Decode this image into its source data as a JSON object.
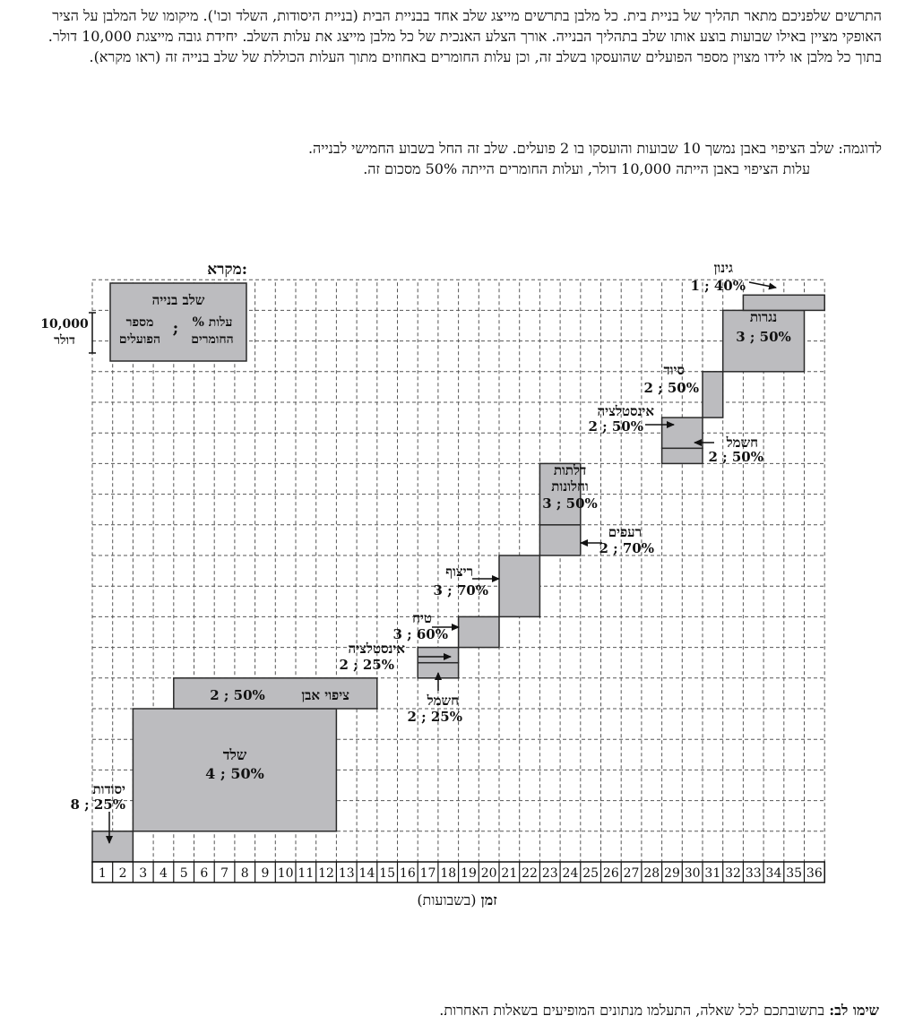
{
  "intro": {
    "p1": "התרשים שלפניכם מתאר תהליך של בניית בית.  כל מלבן בתרשים מייצג שלב אחד בבניית הבית (בניית היסודות, השלד וכו'). מיקומו של המלבן על הציר האופקי מציין באילו שבועות בוצע אותו שלב בתהליך הבנייה.  אורך הצלע האנכית של כל מלבן מייצג את עלות השלב.  יחידת גובה מייצגת 10,000 דולר.",
    "p2": "בתוך כל מלבן או לידו מצוין מספר הפועלים שהועסקו בשלב זה, וכן עלות החומרים באחוזים מתוך העלות הכוללת של שלב בנייה זה (ראו מקרא)."
  },
  "example": {
    "line1": "לדוגמה: שלב הציפוי באבן נמשך 10 שבועות והועסקו בו 2 פועלים. שלב זה החל בשבוע החמישי לבנייה.",
    "line2": "עלות הציפוי באבן הייתה 10,000 דולר, ועלות החומרים הייתה 50% מסכום זה."
  },
  "legend": {
    "title": "מקרא:",
    "stage": "שלב בנייה",
    "workers_l1": "מספר",
    "workers_l2": "הפועלים",
    "sep": ";",
    "materials_l1": "% עלות",
    "materials_l2": "החומרים",
    "unit_l1": "10,000",
    "unit_l2": "דולר"
  },
  "note": {
    "bold": "שימו לב:",
    "text": " בתשובתכם לכל שאלה, התעלמו מנתונים המופיעים בשאלות האחרות."
  },
  "colors": {
    "fill": "#bcbcbf",
    "stroke": "#2a2a2a",
    "grid": "#555555"
  },
  "chart_data": {
    "type": "bar",
    "orientation": "gantt",
    "xlabel_bold": "זמן",
    "xlabel_rest": " (בשבועות)",
    "x_ticks": [
      1,
      2,
      3,
      4,
      5,
      6,
      7,
      8,
      9,
      10,
      11,
      12,
      13,
      14,
      15,
      16,
      17,
      18,
      19,
      20,
      21,
      22,
      23,
      24,
      25,
      26,
      27,
      28,
      29,
      30,
      31,
      32,
      33,
      34,
      35,
      36
    ],
    "xlim": [
      0,
      36
    ],
    "ylim": [
      0,
      19
    ],
    "y_unit": "10,000 דולר",
    "grid": true,
    "stages": [
      {
        "name": "יסודות",
        "workers": 8,
        "materials": "25%",
        "label": "8 ; 25%",
        "start_week": 1,
        "end_week": 2,
        "cost_base": 0,
        "cost": 1
      },
      {
        "name": "שלד",
        "workers": 4,
        "materials": "50%",
        "label": "4 ; 50%",
        "start_week": 3,
        "end_week": 12,
        "cost_base": 1,
        "cost": 4
      },
      {
        "name": "ציפוי אבן",
        "workers": 2,
        "materials": "50%",
        "label": "2 ; 50%",
        "start_week": 5,
        "end_week": 14,
        "cost_base": 5,
        "cost": 1
      },
      {
        "name": "חשמל",
        "workers": 2,
        "materials": "25%",
        "label": "2 ; 25%",
        "start_week": 17,
        "end_week": 18,
        "cost_base": 6,
        "cost": 0.5
      },
      {
        "name": "אינסטלציה",
        "workers": 2,
        "materials": "25%",
        "label": "2 ; 25%",
        "start_week": 17,
        "end_week": 18,
        "cost_base": 6.5,
        "cost": 0.5
      },
      {
        "name": "טיח",
        "workers": 3,
        "materials": "60%",
        "label": "3 ; 60%",
        "start_week": 19,
        "end_week": 20,
        "cost_base": 7,
        "cost": 1
      },
      {
        "name": "ריצוף",
        "workers": 3,
        "materials": "70%",
        "label": "3 ; 70%",
        "start_week": 21,
        "end_week": 22,
        "cost_base": 8,
        "cost": 2
      },
      {
        "name": "רעפים",
        "workers": 2,
        "materials": "70%",
        "label": "2 ; 70%",
        "start_week": 23,
        "end_week": 24,
        "cost_base": 10,
        "cost": 1
      },
      {
        "name": "דלתות וחלונות",
        "name_l1": "דלתות",
        "name_l2": "וחלונות",
        "workers": 3,
        "materials": "50%",
        "label": "3 ; 50%",
        "start_week": 23,
        "end_week": 24,
        "cost_base": 11,
        "cost": 2
      },
      {
        "name": "חשמל",
        "workers": 2,
        "materials": "50%",
        "label": "2 ; 50%",
        "start_week": 29,
        "end_week": 30,
        "cost_base": 13,
        "cost": 0.5
      },
      {
        "name": "אינסטלציה",
        "workers": 2,
        "materials": "50%",
        "label": "2 ; 50%",
        "start_week": 29,
        "end_week": 30,
        "cost_base": 13.5,
        "cost": 1
      },
      {
        "name": "סיוד",
        "workers": 2,
        "materials": "50%",
        "label": "2 ; 50%",
        "start_week": 31,
        "end_week": 31,
        "cost_base": 14.5,
        "cost": 1.5
      },
      {
        "name": "נגרות",
        "workers": 3,
        "materials": "50%",
        "label": "3 ; 50%",
        "start_week": 32,
        "end_week": 35,
        "cost_base": 16,
        "cost": 2
      },
      {
        "name": "גינון",
        "workers": 1,
        "materials": "40%",
        "label": "1 ; 40%",
        "start_week": 33,
        "end_week": 36,
        "cost_base": 18,
        "cost": 0.5
      }
    ]
  }
}
